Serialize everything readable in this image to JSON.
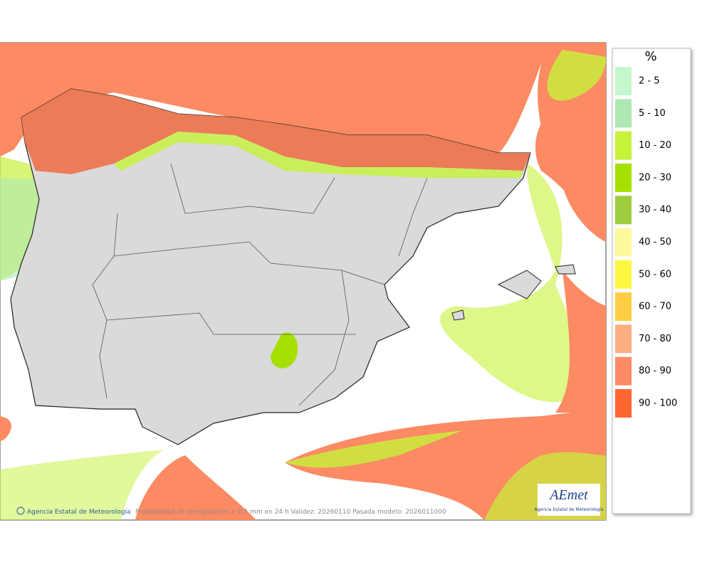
{
  "legend": {
    "title": "%",
    "items": [
      {
        "label": "2 - 5",
        "color": "#c4f8cc"
      },
      {
        "label": "5 - 10",
        "color": "#b0e8b4"
      },
      {
        "label": "10 - 20",
        "color": "#c6f23a"
      },
      {
        "label": "20 - 30",
        "color": "#a6e000"
      },
      {
        "label": "30 - 40",
        "color": "#9ccd3f"
      },
      {
        "label": "40 - 50",
        "color": "#fcf99c"
      },
      {
        "label": "50 - 60",
        "color": "#fef741"
      },
      {
        "label": "60 - 70",
        "color": "#fdce43"
      },
      {
        "label": "70 - 80",
        "color": "#fdae80"
      },
      {
        "label": "80 - 90",
        "color": "#fc8a63"
      },
      {
        "label": "90 - 100",
        "color": "#fd6633"
      }
    ]
  },
  "footer": {
    "credit": "Agencia Estatal de Meteorología",
    "caption": "Probabilidad de precipitación > 0.5 mm en 24 h Validez: 20260110 Pasada modelo: 2026011000"
  },
  "logo": {
    "name": "AEmet",
    "subtitle": "Agencia Estatal de Meteorología"
  }
}
